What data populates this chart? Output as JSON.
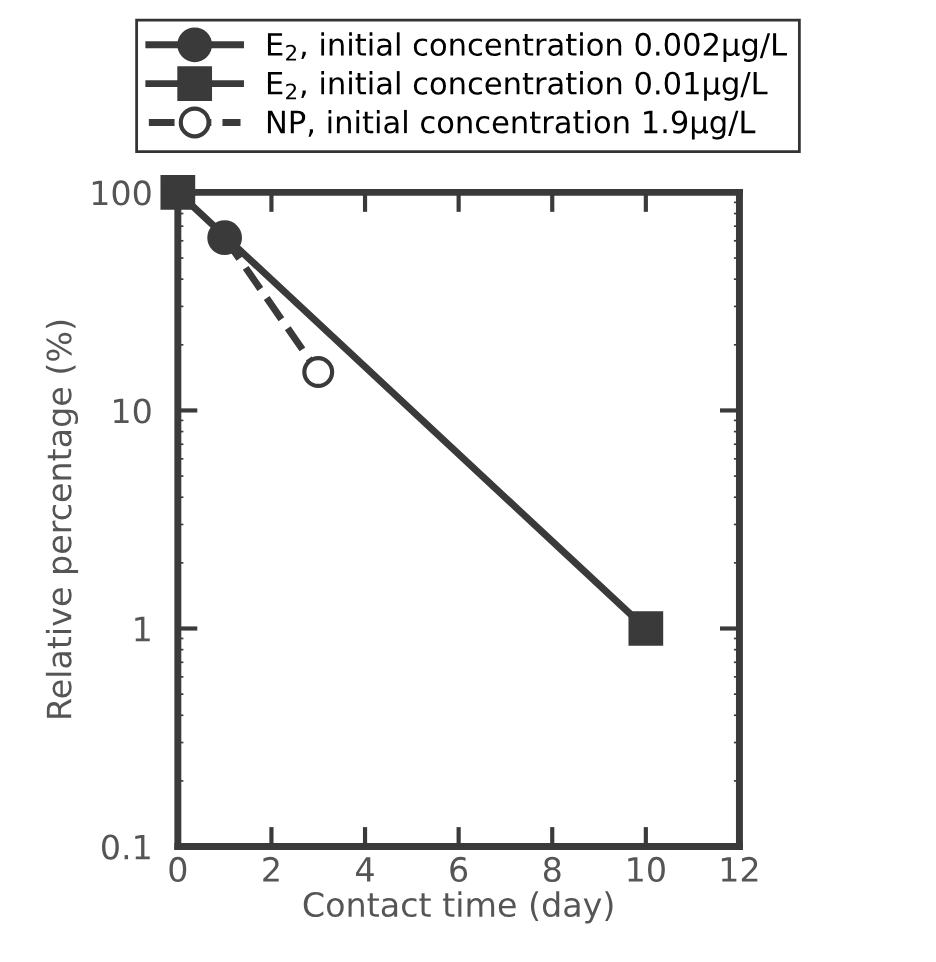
{
  "chart_data": {
    "type": "line",
    "xlabel": "Contact time (day)",
    "ylabel": "Relative percentage (%)",
    "log": "y",
    "xlim": [
      0,
      12
    ],
    "xticks": [
      0,
      2,
      4,
      6,
      8,
      10,
      12
    ],
    "ylim": [
      0.1,
      100
    ],
    "yticks": [
      0.1,
      1,
      10,
      100
    ],
    "legend": "top",
    "grid": false,
    "series": [
      {
        "name": "E$_{2}$, initial concentration 0.002μg/L",
        "color": "#3a3a3a",
        "marker": "circle",
        "line_style": "solid",
        "x": [
          1
        ],
        "values": [
          62
        ]
      },
      {
        "name": "E$_{2}$, initial concentration 0.01μg/L",
        "color": "#3a3a3a",
        "marker": "square",
        "line_style": "solid",
        "x": [
          0,
          10
        ],
        "values": [
          100,
          1
        ]
      },
      {
        "name": "NP, initial concentration 1.9μg/L",
        "color": "#3a3a3a",
        "marker": "circle",
        "line_style": "dashed",
        "x": [
          1,
          3
        ],
        "values": [
          62,
          15
        ]
      }
    ]
  }
}
